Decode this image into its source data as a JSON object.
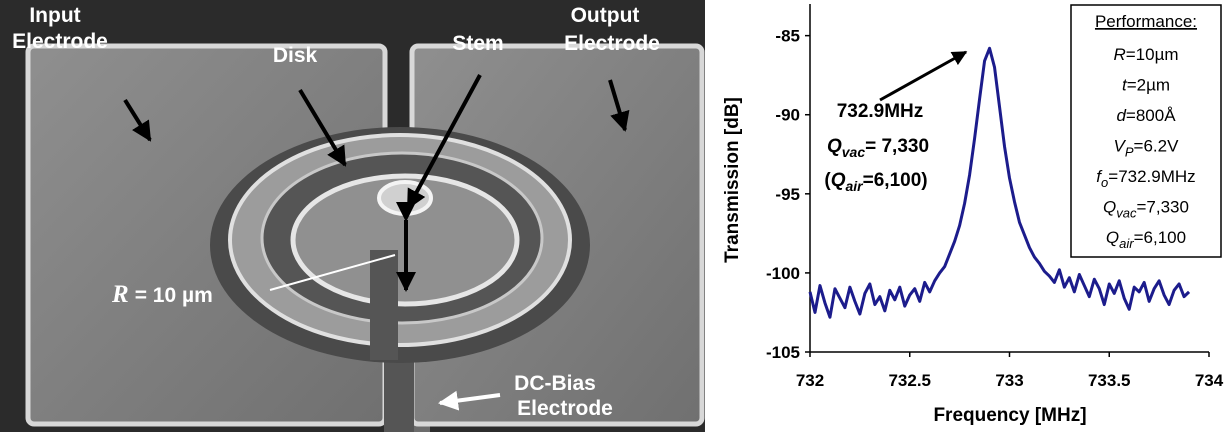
{
  "image": {
    "labels": {
      "input": [
        "Input",
        "Electrode"
      ],
      "disk": "Disk",
      "stem": "Stem",
      "output": [
        "Output",
        "Electrode"
      ],
      "radius": [
        "R",
        "= 10 µm"
      ],
      "dc_bias": [
        "DC-Bias",
        "Electrode"
      ]
    }
  },
  "chart_data": {
    "type": "line",
    "xlabel": "Frequency [MHz]",
    "ylabel": "Transmission [dB]",
    "xlim": [
      732,
      734
    ],
    "xticks": [
      732,
      732.5,
      733,
      733.5,
      734
    ],
    "ylim": [
      -105,
      -83
    ],
    "yticks": [
      -105,
      -100,
      -95,
      -90,
      -85
    ],
    "grid": false,
    "x": [
      732.0,
      732.025,
      732.05,
      732.075,
      732.1,
      732.125,
      732.15,
      732.175,
      732.2,
      732.225,
      732.25,
      732.275,
      732.3,
      732.325,
      732.35,
      732.375,
      732.4,
      732.425,
      732.45,
      732.475,
      732.5,
      732.525,
      732.55,
      732.575,
      732.6,
      732.625,
      732.65,
      732.675,
      732.7,
      732.725,
      732.75,
      732.775,
      732.8,
      732.825,
      732.85,
      732.875,
      732.9,
      732.925,
      732.95,
      732.975,
      733.0,
      733.025,
      733.05,
      733.075,
      733.1,
      733.125,
      733.15,
      733.175,
      733.2,
      733.225,
      733.25,
      733.275,
      733.3,
      733.325,
      733.35,
      733.375,
      733.4,
      733.425,
      733.45,
      733.475,
      733.5,
      733.525,
      733.55,
      733.575,
      733.6,
      733.625,
      733.65,
      733.675,
      733.7,
      733.725,
      733.75,
      733.775,
      733.8,
      733.825,
      733.85,
      733.875,
      733.9
    ],
    "series": [
      {
        "color": "#1c1c8c",
        "values": [
          -101.2,
          -102.5,
          -100.8,
          -101.9,
          -102.8,
          -101.0,
          -101.6,
          -102.2,
          -100.9,
          -101.8,
          -102.6,
          -101.3,
          -100.7,
          -102.0,
          -101.5,
          -102.4,
          -101.1,
          -101.7,
          -100.9,
          -102.1,
          -101.4,
          -101.0,
          -101.8,
          -100.6,
          -101.2,
          -100.5,
          -100.0,
          -99.6,
          -98.8,
          -98.0,
          -97.0,
          -95.6,
          -93.8,
          -91.5,
          -89.0,
          -86.6,
          -85.8,
          -87.0,
          -89.5,
          -92.0,
          -94.0,
          -95.5,
          -96.8,
          -97.6,
          -98.4,
          -99.0,
          -99.4,
          -99.9,
          -100.2,
          -100.6,
          -99.8,
          -100.9,
          -100.3,
          -101.2,
          -100.1,
          -100.8,
          -101.5,
          -100.4,
          -101.0,
          -102.0,
          -100.7,
          -101.3,
          -100.5,
          -101.6,
          -102.3,
          -100.9,
          -101.2,
          -100.6,
          -101.8,
          -101.0,
          -100.5,
          -101.4,
          -102.0,
          -101.1,
          -100.7,
          -101.5,
          -101.2
        ]
      }
    ],
    "annotation": {
      "freq": "732.9MHz",
      "qvac": [
        "Q",
        "vac",
        "= 7,330"
      ],
      "qair": [
        "(",
        "Q",
        "air",
        "=6,100)"
      ]
    },
    "performance": {
      "title": "Performance:",
      "lines": [
        [
          "R",
          "=10µm"
        ],
        [
          "t",
          "=2µm"
        ],
        [
          "d",
          "=800Å"
        ],
        [
          "V",
          "P",
          "=6.2V"
        ],
        [
          "f",
          "o",
          "=732.9MHz"
        ],
        [
          "Q",
          "vac",
          "=7,330"
        ],
        [
          "Q",
          "air",
          "=6,100"
        ]
      ]
    }
  }
}
